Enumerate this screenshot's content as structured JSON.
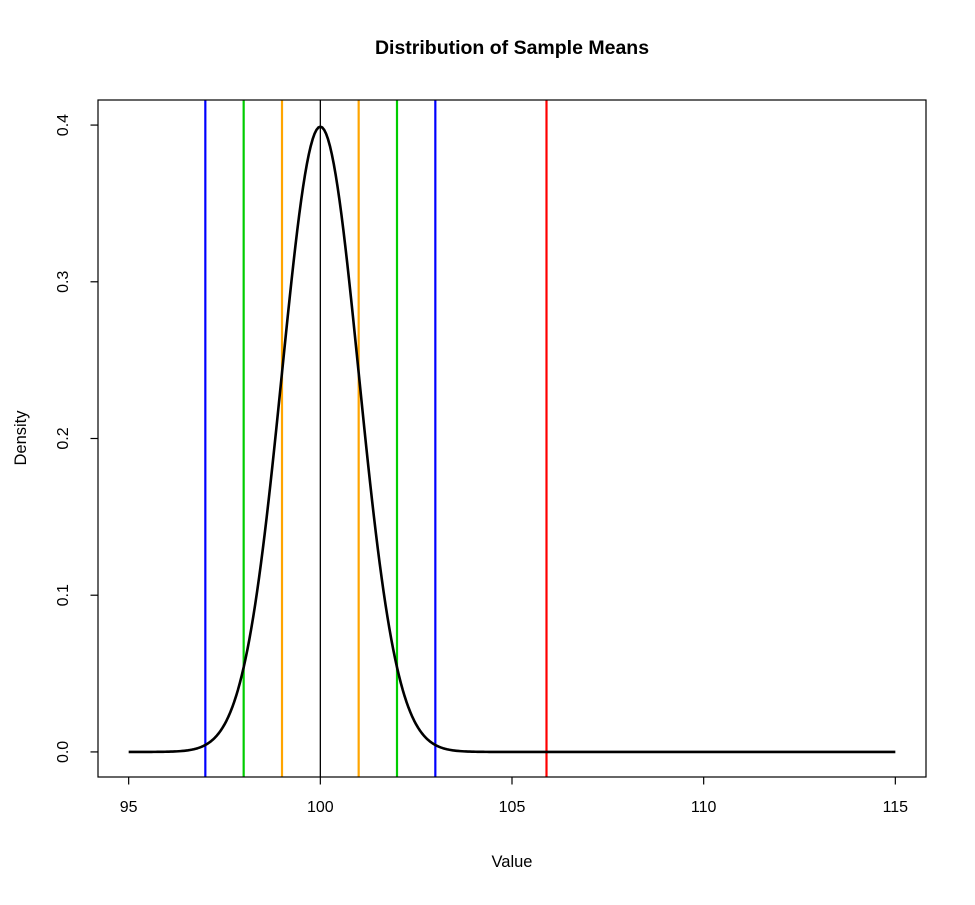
{
  "chart_data": {
    "type": "line",
    "title": "Distribution of Sample Means",
    "xlabel": "Value",
    "ylabel": "Density",
    "xlim": [
      95,
      115
    ],
    "ylim": [
      0,
      0.4
    ],
    "x_ticks": [
      95,
      100,
      105,
      110,
      115
    ],
    "x_tick_labels": [
      "95",
      "100",
      "105",
      "110",
      "115"
    ],
    "y_ticks": [
      0.0,
      0.1,
      0.2,
      0.3,
      0.4
    ],
    "y_tick_labels": [
      "0.0",
      "0.1",
      "0.2",
      "0.3",
      "0.4"
    ],
    "grid": false,
    "legend": "none",
    "background": "#FFFFFF",
    "axis_color": "#000000",
    "curve": {
      "name": "normal-density-curve",
      "distribution": "normal",
      "mean": 100,
      "sd": 1,
      "peak_density": 0.3989,
      "x_range": [
        95,
        115
      ],
      "color": "#000000",
      "line_width": 2.6
    },
    "vlines": [
      {
        "name": "mean-line",
        "x": 100,
        "color": "#000000",
        "line_width": 1.3
      },
      {
        "name": "se1-left-line",
        "x": 99,
        "color": "#FFA500",
        "line_width": 2.2
      },
      {
        "name": "se1-right-line",
        "x": 101,
        "color": "#FFA500",
        "line_width": 2.2
      },
      {
        "name": "se2-left-line",
        "x": 98,
        "color": "#00CD00",
        "line_width": 2.2
      },
      {
        "name": "se2-right-line",
        "x": 102,
        "color": "#00CD00",
        "line_width": 2.2
      },
      {
        "name": "se3-left-line",
        "x": 97,
        "color": "#0000FF",
        "line_width": 2.2
      },
      {
        "name": "se3-right-line",
        "x": 103,
        "color": "#0000FF",
        "line_width": 2.2
      },
      {
        "name": "observed-value-line",
        "x": 105.9,
        "color": "#FF0000",
        "line_width": 2.2
      }
    ]
  }
}
